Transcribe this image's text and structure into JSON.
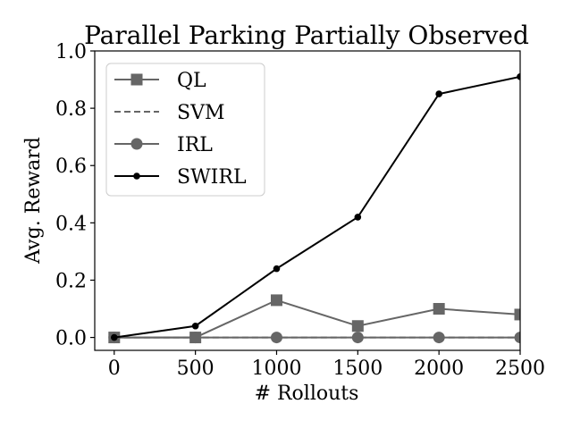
{
  "chart_data": {
    "type": "line",
    "title": "Parallel Parking Partially Observed",
    "xlabel": "# Rollouts",
    "ylabel": "Avg. Reward",
    "x": [
      0,
      500,
      1000,
      1500,
      2000,
      2500
    ],
    "xlim": [
      -120,
      2500
    ],
    "ylim": [
      -0.045,
      1.0
    ],
    "xticks": [
      "0",
      "500",
      "1000",
      "1500",
      "2000",
      "2500"
    ],
    "yticks": [
      "0.0",
      "0.2",
      "0.4",
      "0.6",
      "0.8",
      "1.0"
    ],
    "grid": false,
    "legend_position": "upper-left",
    "series": [
      {
        "name": "QL",
        "values": [
          0.0,
          0.0,
          0.13,
          0.04,
          0.1,
          0.08
        ],
        "color": "#666666",
        "marker": "square",
        "linestyle": "solid"
      },
      {
        "name": "SVM",
        "values": [
          0.0,
          0.0,
          0.0,
          0.0,
          0.0,
          0.0
        ],
        "color": "#666666",
        "marker": "none",
        "linestyle": "dashed"
      },
      {
        "name": "IRL",
        "values": [
          0.0,
          0.0,
          0.0,
          0.0,
          0.0,
          0.0
        ],
        "color": "#666666",
        "marker": "circle",
        "linestyle": "solid"
      },
      {
        "name": "SWIRL",
        "values": [
          0.0,
          0.04,
          0.24,
          0.42,
          0.85,
          0.91
        ],
        "color": "#000000",
        "marker": "dot",
        "linestyle": "solid"
      }
    ]
  }
}
